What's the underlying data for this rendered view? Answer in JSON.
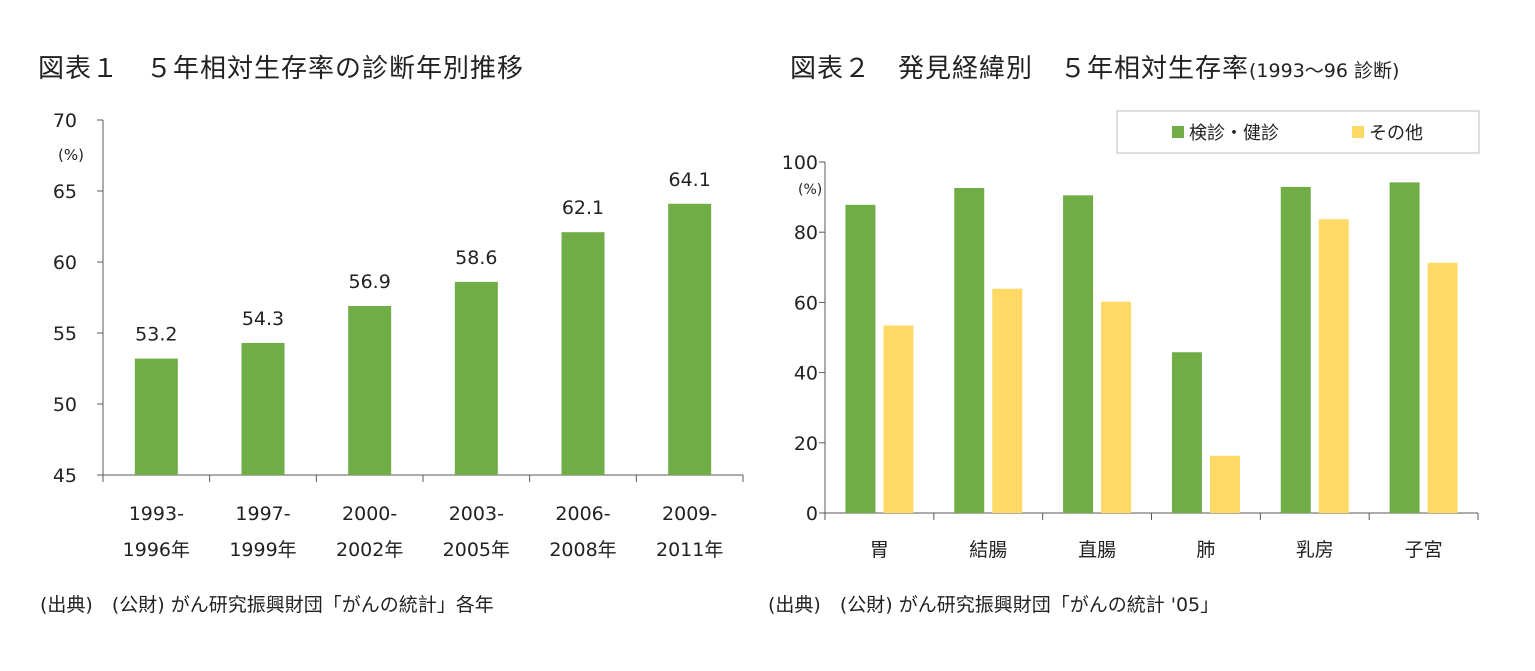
{
  "chart1": {
    "title": "図表１　５年相対生存率の診断年別推移",
    "source": "(出典)　(公財) がん研究振興財団「がんの統計」各年",
    "unit_label": "(%)",
    "chart_data": {
      "type": "bar",
      "categories": [
        [
          "1993-",
          "1996年"
        ],
        [
          "1997-",
          "1999年"
        ],
        [
          "2000-",
          "2002年"
        ],
        [
          "2003-",
          "2005年"
        ],
        [
          "2006-",
          "2008年"
        ],
        [
          "2009-",
          "2011年"
        ]
      ],
      "values": [
        53.2,
        54.3,
        56.9,
        58.6,
        62.1,
        64.1
      ],
      "data_labels": [
        "53.2",
        "54.3",
        "56.9",
        "58.6",
        "62.1",
        "64.1"
      ],
      "ylim": [
        45,
        70
      ],
      "yticks": [
        45,
        50,
        55,
        60,
        65,
        70
      ],
      "xlabel": "",
      "ylabel": "",
      "color": "#70ad47"
    }
  },
  "chart2": {
    "title": "図表２　発見経緯別　５年相対生存率",
    "title_sub": "(1993～96 診断)",
    "source": "(出典)　(公財) がん研究振興財団「がんの統計 '05」",
    "unit_label": "(%)",
    "chart_data": {
      "type": "bar",
      "categories": [
        "胃",
        "結腸",
        "直腸",
        "肺",
        "乳房",
        "子宮"
      ],
      "series": [
        {
          "name": "検診・健診",
          "color": "#70ad47",
          "values": [
            87.8,
            92.6,
            90.5,
            45.8,
            92.9,
            94.2
          ]
        },
        {
          "name": "その他",
          "color": "#ffd966",
          "values": [
            53.4,
            63.9,
            60.2,
            16.3,
            83.7,
            71.3
          ]
        }
      ],
      "ylim": [
        0,
        100
      ],
      "yticks": [
        0,
        20,
        40,
        60,
        80,
        100
      ],
      "legend_position": "top-right",
      "xlabel": "",
      "ylabel": ""
    }
  }
}
